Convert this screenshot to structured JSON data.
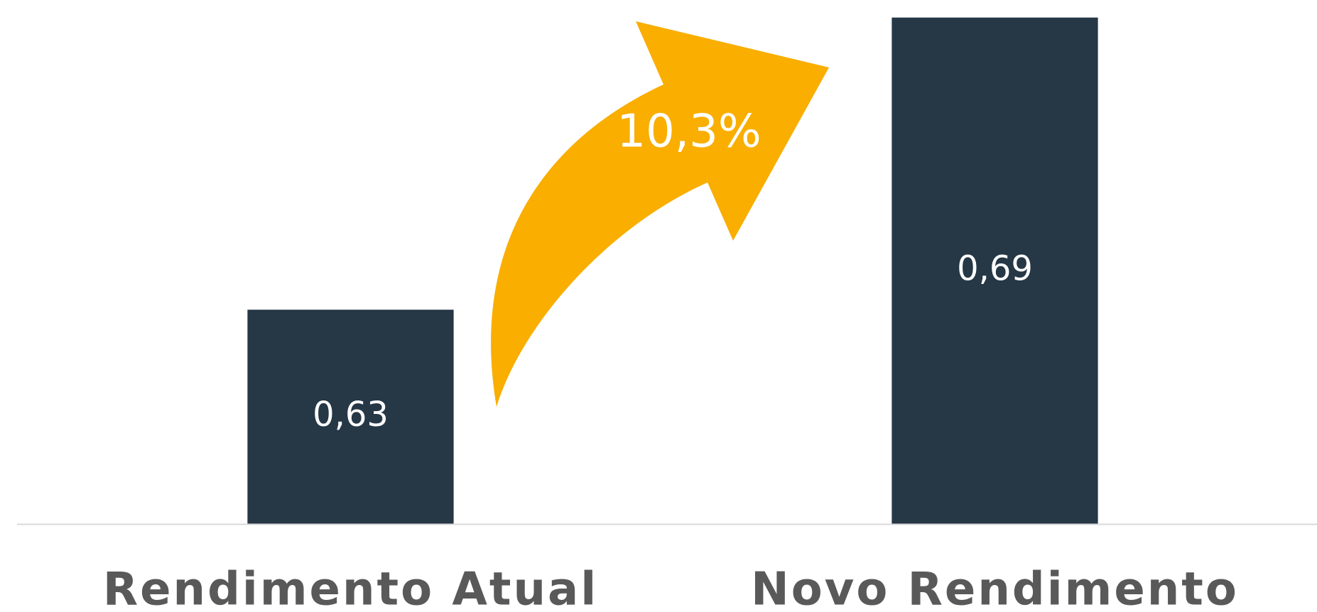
{
  "chart_data": {
    "type": "bar",
    "categories": [
      "Rendimento Atual",
      "Novo Rendimento"
    ],
    "values": [
      0.63,
      0.69
    ],
    "value_labels": [
      "0,63",
      "0,69"
    ],
    "color": "#263746",
    "ylim": [
      0.586,
      0.692
    ],
    "annotation": "10,3%",
    "annotation_color": "#f9ae00"
  }
}
